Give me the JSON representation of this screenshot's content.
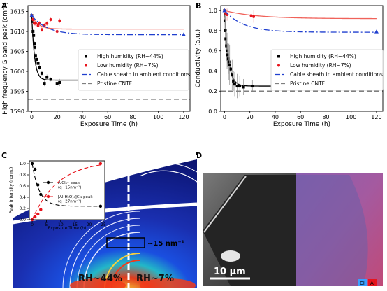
{
  "panels": {
    "A": "A",
    "B": "B",
    "C": "C",
    "D": "D"
  },
  "chart_data": [
    {
      "panel": "A",
      "type": "scatter",
      "title": "",
      "xlabel": "Exposure Time (h)",
      "ylabel": "High frequency G band peak (cm⁻¹)",
      "xlim": [
        -3,
        125
      ],
      "ylim": [
        1590,
        1616.5
      ],
      "xticks": [
        0,
        20,
        40,
        60,
        80,
        100,
        120
      ],
      "yticks": [
        1590,
        1595,
        1600,
        1605,
        1610,
        1615
      ],
      "legend_position": "center-right",
      "series": [
        {
          "name": "High humidity (RH~44%)",
          "color": "#000000",
          "marker": "square",
          "fit_line": "solid",
          "points": [
            [
              0,
              1614
            ],
            [
              0.5,
              1612.5
            ],
            [
              1,
              1610
            ],
            [
              1.5,
              1609
            ],
            [
              2,
              1607
            ],
            [
              2.5,
              1606
            ],
            [
              3,
              1604
            ],
            [
              4,
              1603
            ],
            [
              5,
              1602
            ],
            [
              6,
              1601
            ],
            [
              8,
              1599.5
            ],
            [
              10,
              1597
            ],
            [
              12,
              1598.5
            ],
            [
              15,
              1598
            ],
            [
              20,
              1597
            ],
            [
              22,
              1597.2
            ]
          ],
          "error": [
            0.3,
            0.5,
            0.6,
            0.8,
            0.7,
            0.6,
            0.5,
            0.6,
            0.5,
            0.6,
            0.6,
            0.7,
            0.7,
            0.5,
            0.9,
            0.9
          ],
          "fit": {
            "asymptote": 1597.8,
            "start": 1614,
            "tau": 2.2
          }
        },
        {
          "name": "Low humidity (RH~7%)",
          "color": "#e8141c",
          "marker": "circle",
          "fit_line": "solid",
          "points": [
            [
              0,
              1614
            ],
            [
              1,
              1613
            ],
            [
              2,
              1612
            ],
            [
              3,
              1612
            ],
            [
              5,
              1611.5
            ],
            [
              6,
              1612
            ],
            [
              8,
              1610.5
            ],
            [
              10,
              1611.5
            ],
            [
              12,
              1612
            ],
            [
              15,
              1613
            ],
            [
              20,
              1610
            ],
            [
              22,
              1612.7
            ]
          ],
          "error": [
            0.3,
            0.6,
            0.6,
            0.6,
            0.6,
            0.6,
            0.6,
            0.6,
            0.6,
            0.6,
            0.6,
            0.6
          ],
          "fit": {
            "asymptote": 1610.6,
            "start": 1614,
            "tau": 5
          }
        },
        {
          "name": "Cable sheath in ambient conditions",
          "color": "#1f3fcf",
          "marker": "triangle",
          "line": "dashdot",
          "points": [
            [
              0,
              1614
            ],
            [
              120,
              1609.2
            ]
          ],
          "fit": {
            "asymptote": 1609.2,
            "start": 1614,
            "tau": 12
          }
        },
        {
          "name": "Pristine CNTF",
          "color": "#7f7f7f",
          "line": "dashed",
          "value": 1593
        }
      ]
    },
    {
      "panel": "B",
      "type": "scatter",
      "title": "",
      "xlabel": "Exposure Time (h)",
      "ylabel": "Conductivity (a.u.)",
      "xlim": [
        -3,
        125
      ],
      "ylim": [
        0,
        1.05
      ],
      "xticks": [
        0,
        20,
        40,
        60,
        80,
        100,
        120
      ],
      "yticks": [
        0.0,
        0.2,
        0.4,
        0.6,
        0.8,
        1.0
      ],
      "legend_position": "center-right",
      "series": [
        {
          "name": "High humidity (RH~44%)",
          "color": "#000000",
          "marker": "square",
          "fit_line": "solid",
          "points": [
            [
              0,
              1.0
            ],
            [
              0.3,
              0.9
            ],
            [
              0.6,
              0.8
            ],
            [
              1,
              0.72
            ],
            [
              1.5,
              0.65
            ],
            [
              2,
              0.6
            ],
            [
              2.5,
              0.56
            ],
            [
              3,
              0.52
            ],
            [
              3.5,
              0.49
            ],
            [
              4,
              0.46
            ],
            [
              5,
              0.42
            ],
            [
              6,
              0.36
            ],
            [
              7,
              0.3
            ],
            [
              8,
              0.27
            ],
            [
              10,
              0.25
            ],
            [
              12,
              0.25
            ],
            [
              15,
              0.24
            ],
            [
              22,
              0.25
            ]
          ],
          "error": [
            0.02,
            0.1,
            0.15,
            0.12,
            0.15,
            0.18,
            0.12,
            0.15,
            0.18,
            0.2,
            0.22,
            0.15,
            0.1,
            0.12,
            0.12,
            0.1,
            0.08,
            0.06
          ],
          "fit": {
            "asymptote": 0.25,
            "start": 1.0,
            "tau": 3
          }
        },
        {
          "name": "Low humidity (RH~7%)",
          "color": "#e8141c",
          "marker": "circle",
          "fit_line": "solid",
          "points": [
            [
              0,
              1.0
            ],
            [
              1,
              0.97
            ],
            [
              2,
              0.96
            ],
            [
              21,
              0.95
            ],
            [
              23,
              0.94
            ]
          ],
          "error": [
            0.02,
            0.06,
            0.06,
            0.06,
            0.06
          ],
          "fit": {
            "asymptote": 0.92,
            "start": 1.0,
            "tau": 25
          }
        },
        {
          "name": "Cable sheath  in ambient conditions",
          "color": "#1f3fcf",
          "marker": "triangle",
          "line": "dashdot",
          "points": [
            [
              0,
              1.0
            ],
            [
              120,
              0.79
            ]
          ],
          "fit": {
            "asymptote": 0.785,
            "start": 1.0,
            "tau": 15
          }
        },
        {
          "name": "Pristine CNTF",
          "color": "#7f7f7f",
          "line": "dashed",
          "value": 0.2
        }
      ]
    },
    {
      "panel": "C-inset",
      "type": "scatter",
      "title": "",
      "xlabel": "Exposure Time (h)",
      "ylabel": "Peak Intensity (norm.)",
      "xlim": [
        -1,
        25.5
      ],
      "ylim": [
        0,
        1.05
      ],
      "xticks": [
        0,
        5,
        10,
        15,
        20,
        25
      ],
      "yticks": [
        0.0,
        0.2,
        0.4,
        0.6,
        0.8,
        1.0
      ],
      "legend_position": "center-right",
      "series": [
        {
          "name": "AlCl₄⁻ peak",
          "sub": "(q~15nm⁻¹)",
          "color": "#000000",
          "marker": "circle",
          "line": "dashed",
          "points": [
            [
              0,
              1.0
            ],
            [
              1,
              0.9
            ],
            [
              2,
              0.62
            ],
            [
              3,
              0.45
            ],
            [
              24,
              0.24
            ]
          ],
          "fit": {
            "asymptote": 0.24,
            "start": 1.0,
            "tau": 2.5
          }
        },
        {
          "name": "[Al(H₂O)₆]Cl₃ peak",
          "sub": "(q~27nm⁻¹)",
          "color": "#e8141c",
          "marker": "circle",
          "line": "dashed",
          "points": [
            [
              0,
              0.0
            ],
            [
              1,
              0.05
            ],
            [
              2,
              0.1
            ],
            [
              3,
              0.18
            ],
            [
              24,
              1.0
            ]
          ],
          "fit": {
            "asymptote": 1.05,
            "start": 0.0,
            "tau": 9
          }
        }
      ]
    }
  ],
  "panel_c_image": {
    "label_q": "~15 nm⁻¹",
    "label_left": "RH~44%",
    "label_right": "RH~7%"
  },
  "panel_d_image": {
    "scale_bar": "10 μm",
    "legend_cl": "Cl",
    "legend_al": "Al"
  },
  "colors": {
    "black_series": "#000000",
    "red_series": "#e8141c",
    "blue_series": "#1f3fcf",
    "gray_ref": "#7f7f7f",
    "red_fit": "#f0625a"
  }
}
